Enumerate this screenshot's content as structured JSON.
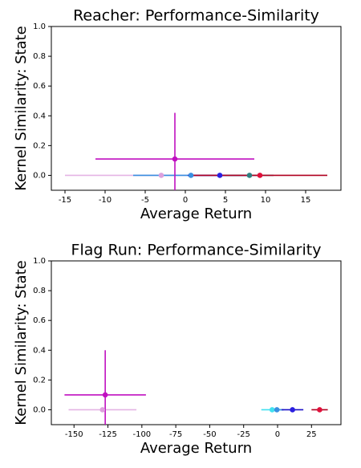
{
  "chart_data": [
    {
      "type": "scatter",
      "title": "Reacher: Performance-Similarity",
      "x_label": "Average Return",
      "y_label": "Kernel Similarity: State",
      "xlim": [
        -16.7,
        19.4
      ],
      "ylim": [
        -0.1,
        1.0
      ],
      "xticks": [
        -15,
        -10,
        -5,
        0,
        5,
        10,
        15
      ],
      "yticks": [
        {
          "value": 0,
          "label": "0.0"
        },
        0.2,
        0.4,
        0.6,
        0.8,
        {
          "value": 1,
          "label": "1.0"
        }
      ],
      "series": [
        {
          "color": "#dda0dd",
          "error_color": "#e4b4e4",
          "x": [
            -3.0
          ],
          "values": [
            0
          ],
          "xerr": [
            12
          ]
        },
        {
          "color": "#3a8fe0",
          "error_color": "#3a8fe0",
          "x": [
            0.7
          ],
          "values": [
            0
          ],
          "xerr": [
            7.2
          ]
        },
        {
          "color": "#2a1fe0",
          "error_color": "#1a10c8",
          "x": [
            4.3
          ],
          "values": [
            0
          ],
          "xerr": [
            4
          ]
        },
        {
          "color": "#2e8080",
          "error_color": "#2e8080",
          "x": [
            8.0
          ],
          "values": [
            0
          ],
          "xerr": [
            3
          ]
        },
        {
          "color": "#e0103a",
          "error_color": "#b00020",
          "x": [
            9.3
          ],
          "values": [
            0
          ],
          "xerr": [
            8.4
          ]
        },
        {
          "color": "#c010c0",
          "error_color": "#c010c0",
          "x": [
            -1.3
          ],
          "values": [
            0.11
          ],
          "xerr": [
            9.9
          ],
          "yerr": [
            0.31
          ]
        }
      ]
    },
    {
      "type": "scatter",
      "title": "Flag Run: Performance-Similarity",
      "x_label": "Average Return",
      "y_label": "Kernel Similarity: State",
      "xlim": [
        -166.7,
        46.7
      ],
      "ylim": [
        -0.1,
        1.0
      ],
      "xticks": [
        -150,
        -125,
        -100,
        -75,
        -50,
        -25,
        0,
        25
      ],
      "yticks": [
        {
          "value": 0,
          "label": "0.0"
        },
        0.2,
        0.4,
        0.6,
        0.8,
        {
          "value": 1,
          "label": "1.0"
        }
      ],
      "series": [
        {
          "color": "#dda0dd",
          "error_color": "#e4b4e4",
          "x": [
            -129
          ],
          "values": [
            0
          ],
          "xerr": [
            25
          ]
        },
        {
          "color": "#40e0f0",
          "error_color": "#40e0f0",
          "x": [
            -4
          ],
          "values": [
            0
          ],
          "xerr": [
            8
          ]
        },
        {
          "color": "#3a8fe0",
          "error_color": "#3a8fe0",
          "x": [
            -0.5
          ],
          "values": [
            0
          ],
          "xerr": [
            5
          ]
        },
        {
          "color": "#2a1fe0",
          "error_color": "#1a10c8",
          "x": [
            11
          ],
          "values": [
            0
          ],
          "xerr": [
            8
          ]
        },
        {
          "color": "#e0103a",
          "error_color": "#b00020",
          "x": [
            31
          ],
          "values": [
            0
          ],
          "xerr": [
            6
          ]
        },
        {
          "color": "#c010c0",
          "error_color": "#c010c0",
          "x": [
            -127
          ],
          "values": [
            0.1
          ],
          "xerr": [
            30
          ],
          "yerr": [
            0.3
          ]
        }
      ]
    }
  ]
}
